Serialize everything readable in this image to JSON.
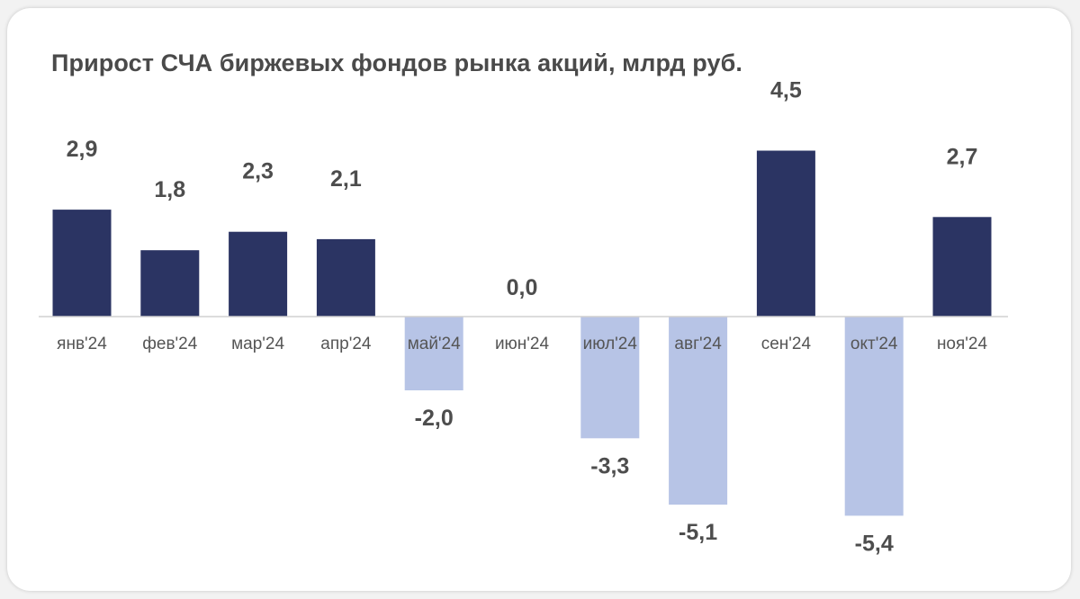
{
  "chart_data": {
    "type": "bar",
    "title": "Прирост СЧА биржевых фондов рынка акций, млрд руб.",
    "categories": [
      "янв'24",
      "фев'24",
      "мар'24",
      "апр'24",
      "май'24",
      "июн'24",
      "июл'24",
      "авг'24",
      "сен'24",
      "окт'24",
      "ноя'24"
    ],
    "values": [
      2.9,
      1.8,
      2.3,
      2.1,
      -2.0,
      0.0,
      -3.3,
      -5.1,
      4.5,
      -5.4,
      2.7
    ],
    "value_labels": [
      "2,9",
      "1,8",
      "2,3",
      "2,1",
      "-2,0",
      "0,0",
      "-3,3",
      "-5,1",
      "4,5",
      "-5,4",
      "2,7"
    ],
    "xlabel": "",
    "ylabel": "",
    "ylim": [
      -5.4,
      4.5
    ],
    "grid": false,
    "legend": "none",
    "colors": {
      "positive": "#2b3463",
      "negative": "#b7c4e6",
      "axis": "#d0d0d0"
    }
  }
}
